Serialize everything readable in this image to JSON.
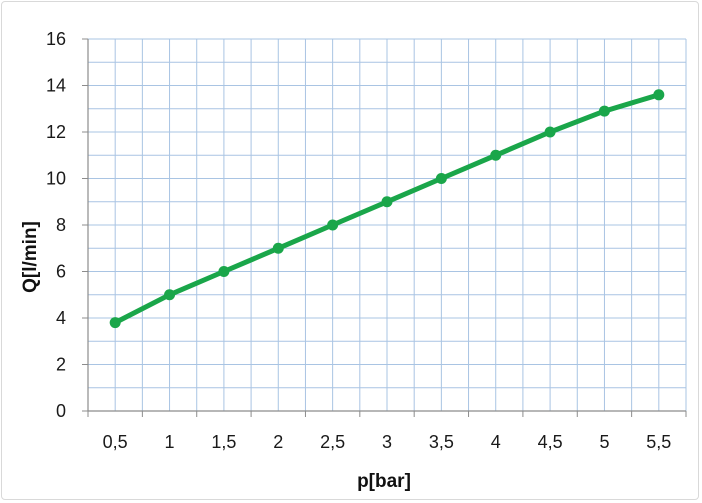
{
  "chart_data": {
    "type": "line",
    "title": "",
    "xlabel": "p[bar]",
    "ylabel": "Q[l/min]",
    "categories": [
      "0,5",
      "1",
      "1,5",
      "2",
      "2,5",
      "3",
      "3,5",
      "4",
      "4,5",
      "5",
      "5,5"
    ],
    "x": [
      0.5,
      1,
      1.5,
      2,
      2.5,
      3,
      3.5,
      4,
      4.5,
      5,
      5.5
    ],
    "series": [
      {
        "name": "",
        "values": [
          3.8,
          5,
          6,
          7,
          8,
          9,
          10,
          11,
          12,
          12.9,
          13.6
        ]
      }
    ],
    "ylim": [
      0,
      16
    ],
    "yticks": [
      "0",
      "2",
      "4",
      "6",
      "8",
      "10",
      "12",
      "14",
      "16"
    ],
    "grid": true,
    "legend": "none",
    "colors": {
      "line": "#1aa64a",
      "grid": "#a9c4e3",
      "axis": "#8c8c8c"
    }
  }
}
